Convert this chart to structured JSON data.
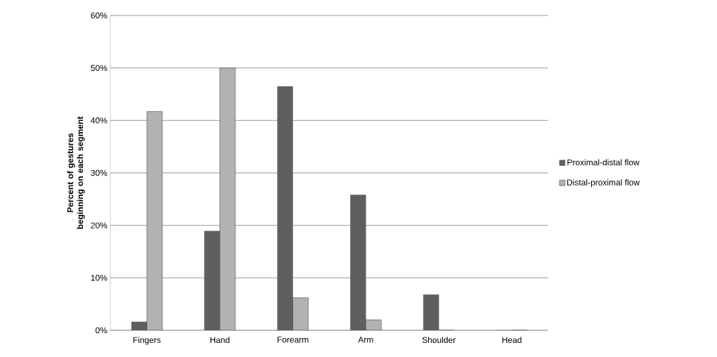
{
  "chart_data": {
    "type": "bar",
    "ylabel": "Percent of gestures beginning on each segment",
    "categories": [
      "Fingers",
      "Hand",
      "Forearm",
      "Arm",
      "Shoulder",
      "Head"
    ],
    "series": [
      {
        "name": "Proximal-distal flow",
        "color": "#5f5f5f",
        "values": [
          1.6,
          18.9,
          46.5,
          25.8,
          6.8,
          0
        ]
      },
      {
        "name": "Distal-proximal flow",
        "color": "#b2b2b2",
        "values": [
          41.7,
          50,
          6.2,
          2.0,
          0,
          0
        ]
      }
    ],
    "ylim": [
      0,
      60
    ],
    "yticks": [
      {
        "value": 0,
        "label": "0%"
      },
      {
        "value": 10,
        "label": "10%"
      },
      {
        "value": 20,
        "label": "20%"
      },
      {
        "value": 30,
        "label": "30%"
      },
      {
        "value": 40,
        "label": "40%"
      },
      {
        "value": 50,
        "label": "50%"
      },
      {
        "value": 60,
        "label": "60%"
      }
    ],
    "grid": "y",
    "legend": "right"
  }
}
